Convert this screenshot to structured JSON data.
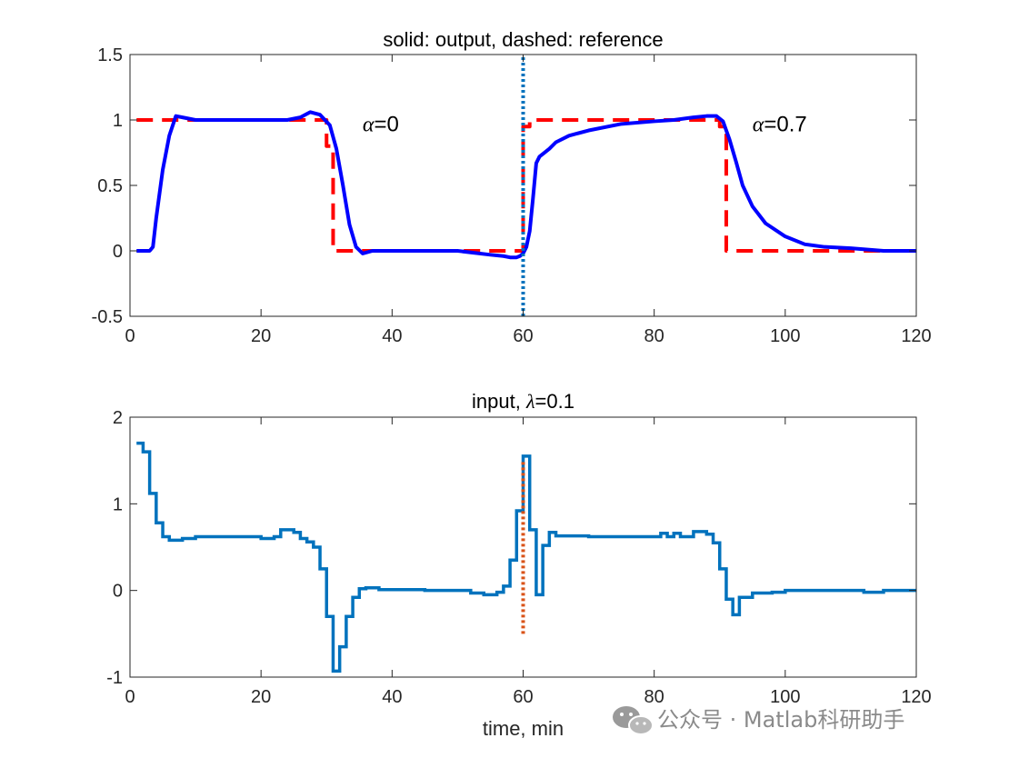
{
  "watermark": "公众号 · Matlab科研助手",
  "chart_data": [
    {
      "type": "line",
      "title_prefix": "solid: output, dashed: reference",
      "xlim": [
        0,
        120
      ],
      "ylim": [
        -0.5,
        1.5
      ],
      "xticks": [
        0,
        20,
        40,
        60,
        80,
        100,
        120
      ],
      "yticks": [
        1.5,
        1,
        0.5,
        0,
        -0.5
      ],
      "xticklabels": [
        "0",
        "20",
        "40",
        "60",
        "80",
        "100",
        "120"
      ],
      "yticklabels": [
        "1.5",
        "1",
        "0.5",
        "0",
        "-0.5"
      ],
      "annotations": [
        {
          "symbol": "α",
          "text": "=0",
          "x": 35.5,
          "y": 0.97
        },
        {
          "symbol": "α",
          "text": "=0.7",
          "x": 95,
          "y": 0.97
        }
      ],
      "series": [
        {
          "name": "reference",
          "style": "dashed",
          "color": "#ff0000",
          "x": [
            1,
            30,
            30,
            31,
            31,
            60,
            60,
            61,
            61,
            90,
            90,
            91,
            91,
            120
          ],
          "y": [
            1,
            1,
            0.8,
            0.8,
            0,
            0,
            0.95,
            0.95,
            1,
            1,
            0.95,
            0.95,
            0,
            0
          ]
        },
        {
          "name": "output",
          "style": "solid",
          "color": "#0000ff",
          "x": [
            1,
            3,
            3.5,
            4,
            5,
            6,
            7,
            8,
            10,
            15,
            20,
            24,
            26,
            27.5,
            29,
            30.5,
            31.5,
            32.5,
            33.5,
            34.5,
            35.5,
            37,
            40,
            50,
            55,
            57,
            58,
            59,
            59.5,
            60,
            60.5,
            61,
            61.5,
            62,
            62.5,
            63,
            64,
            65,
            67,
            70,
            75,
            80,
            83,
            86,
            88,
            89.5,
            90.5,
            91.5,
            92.5,
            93.5,
            95,
            97,
            100,
            103,
            106,
            110,
            115,
            120
          ],
          "y": [
            0,
            0,
            0.03,
            0.25,
            0.62,
            0.88,
            1.03,
            1.02,
            1.0,
            1.0,
            1.0,
            1.0,
            1.02,
            1.06,
            1.04,
            0.96,
            0.78,
            0.5,
            0.2,
            0.03,
            -0.02,
            0.0,
            0.0,
            0.0,
            -0.03,
            -0.04,
            -0.05,
            -0.05,
            -0.04,
            -0.02,
            0.03,
            0.15,
            0.4,
            0.67,
            0.72,
            0.74,
            0.78,
            0.83,
            0.88,
            0.92,
            0.97,
            0.99,
            1.0,
            1.02,
            1.03,
            1.03,
            0.99,
            0.85,
            0.68,
            0.5,
            0.34,
            0.21,
            0.11,
            0.05,
            0.03,
            0.02,
            0.0,
            0.0
          ]
        }
      ],
      "vline": {
        "x": 60,
        "ymin": -0.5,
        "ymax": 1.5,
        "color": "#0072bd",
        "style": "dotted"
      }
    },
    {
      "type": "line",
      "title_prefix": "input, ",
      "title_symbol": "λ",
      "title_suffix": "=0.1",
      "xlabel": "time, min",
      "xlim": [
        0,
        120
      ],
      "ylim": [
        -1,
        2
      ],
      "xticks": [
        0,
        20,
        40,
        60,
        80,
        100,
        120
      ],
      "yticks": [
        2,
        1,
        0,
        -1
      ],
      "xticklabels": [
        "0",
        "20",
        "40",
        "60",
        "80",
        "100",
        "120"
      ],
      "yticklabels": [
        "2",
        "1",
        "0",
        "-1"
      ],
      "series": [
        {
          "name": "input",
          "style": "step",
          "color": "#0072bd",
          "x": [
            1,
            2,
            3,
            4,
            5,
            6,
            8,
            10,
            15,
            20,
            22,
            23,
            25,
            26,
            27,
            28,
            29,
            30,
            31,
            32,
            33,
            34,
            35,
            36,
            38,
            45,
            50,
            52,
            54,
            56,
            57,
            58,
            59,
            60,
            61,
            62,
            63,
            64,
            65,
            67,
            70,
            75,
            80,
            81,
            82,
            83,
            84,
            86,
            88,
            89,
            90,
            91,
            92,
            93,
            95,
            98,
            100,
            105,
            110,
            112,
            115,
            120
          ],
          "y": [
            1.7,
            1.6,
            1.12,
            0.78,
            0.62,
            0.58,
            0.6,
            0.62,
            0.62,
            0.6,
            0.62,
            0.7,
            0.67,
            0.6,
            0.56,
            0.5,
            0.25,
            -0.3,
            -0.93,
            -0.65,
            -0.3,
            -0.08,
            0.02,
            0.03,
            0.01,
            0.0,
            0.0,
            -0.03,
            -0.05,
            -0.02,
            0.05,
            0.35,
            0.92,
            1.55,
            0.7,
            -0.05,
            0.52,
            0.67,
            0.63,
            0.63,
            0.62,
            0.62,
            0.62,
            0.66,
            0.62,
            0.66,
            0.62,
            0.68,
            0.65,
            0.55,
            0.25,
            -0.1,
            -0.28,
            -0.08,
            -0.03,
            -0.02,
            0.0,
            0.0,
            0.0,
            -0.02,
            0.0,
            0.0
          ]
        }
      ],
      "vline": {
        "x": 60,
        "ymin": -0.5,
        "ymax": 1.5,
        "color": "#d95319",
        "style": "dotted"
      }
    }
  ]
}
